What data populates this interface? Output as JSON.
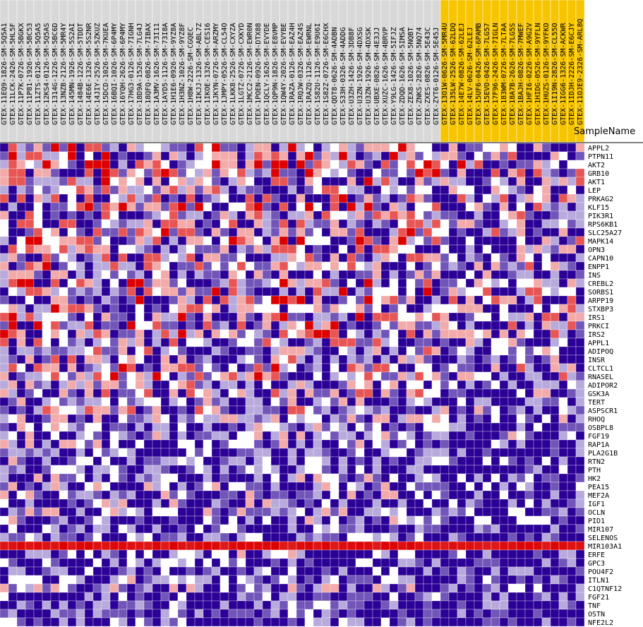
{
  "header": {
    "sample_name_label": "SampleName"
  },
  "chart_data": {
    "type": "heatmap",
    "highlight_color": "#f7c400",
    "columns": [
      "GTEX-11EQ9-1826-SM-5Q5A1",
      "GTEX-11LCK-2426-SM-5HL5F",
      "GTEX-11P7K-0726-SM-5BGKX",
      "GTEX-11P81-1926-SM-5BC53",
      "GTEX-11ZTS-0126-SM-5Q5A5",
      "GTEX-12KS4-0126-SM-5Q5AS",
      "GTEX-1314G-1226-SM-5BC6D",
      "GTEX-13NZB-2126-SM-5MR4Y",
      "GTEX-145MN-1926-SM-5S2AI",
      "GTEX-1484B-1226-SM-5TDDT",
      "GTEX-14E6E-1326-SM-5S2NR",
      "GTEX-14JIY-2526-SM-5ZKUZ",
      "GTEX-15DCD-1026-SM-7KUEA",
      "GTEX-16BQI-1026-SM-6P4MY",
      "GTEX-16YQH-2626-SM-6P4MY",
      "GTEX-17HG3-0126-SM-7IGNH",
      "GTEX-18D9A-1526-SM-7LG4J",
      "GTEX-18QFQ-0826-SM-7IBAX",
      "GTEX-1A3MV-1626-SM-73I11",
      "GTEX-1AYD5-1126-SM-73I8A",
      "GTEX-1H1E6-0926-SM-9YZ8A",
      "GTEX-1H3NZ-1026-SM-9YZ8F",
      "GTEX-1H8W-2226-SM-CGQEC",
      "GTEX-1IKJJ-1326-SM-ABL7Z",
      "GTEX-1IKOE-1326-SM-CES16",
      "GTEX-1JKYN-0726-SM-ARZMY",
      "GTEX-1JMPY-0526-SM-CL54O",
      "GTEX-1LKK8-2526-SM-CXYZA",
      "GTEX-1LGTZ-0726-SM-CXKYD",
      "GTEX-1MCC2-2126-SM-EWR0N",
      "GTEX-1POEN-0926-SM-DTX88",
      "GTEX-1QCLY-1626-SM-EVYDE",
      "GTEX-1QP9N-1826-SM-E8VMP",
      "GTEX-1QW4Y-2026-SM-EVYBE",
      "GTEX-1RAZA-0126-SM-EAZ4H",
      "GTEX-1RQJW-0326-SM-EAZ4S",
      "GTEX-1RAZQ-1126-SM-EWRNL",
      "GTEX-1S82U-1126-SM-E9U6I",
      "GTEX-1S82Z-0726-SM-E6CHX",
      "GTEX-QDT8-0626-SM-4ADBN",
      "GTEX-S33H-0326-SM-4ADDG",
      "GTEX-U3ZH-1426-SM-3DB8F",
      "GTEX-U3ZN-1926-SM-4DXSG",
      "GTEX-U3ZN-1926-SM-4DXSK",
      "GTEX-UBXE-0826-SM-4E3JJ",
      "GTEX-XUZC-1626-SM-4BRVP",
      "GTEX-Y9LG-1426-SM-5IFJZ",
      "GTEX-ZDQD-1626-SM-5IMSA",
      "GTEX-ZEX8-1026-SM-5NQBT",
      "GTEX-ZNKS-2826-SM-5NQ74",
      "GTEX-ZXES-0826-SM-5E43C",
      "GTEX-ZYT6-0126-SM-5E45J",
      "GTEX-13O1W-0626-SM-5MR4U",
      "GTEX-135LW-2526-SM-62LDQ",
      "GTEX-14E7W-0826-SM-62LEJ",
      "GTEX-14LV-0626-SM-62LEJ",
      "GTEX-15UF6-0426-SM-6PAMB",
      "GTEX-15EVO-0426-SM-7LG57",
      "GTEX-17F96-2426-SM-7IGLN",
      "GTEX-183WM-0726-SM-7LTAA",
      "GTEX-18A7B-2626-SM-7LG5S",
      "GTEX-1BAJH-0826-SM-7MWEF",
      "GTEX-1HFI6-0226-SM-A9G2V",
      "GTEX-1HIDG-0526-SM-9YFLN",
      "GTEX-1HUZS-0126-SM-9YFKO",
      "GTEX-1I19N-2826-SM-CL55O",
      "GTEX-1IGG6-1326-SM-ACKWR",
      "GTEX-1IDJH-2226-SM-E6CJY",
      "GTEX-11OJE9-2326-SM-ARL8Q"
    ],
    "highlighted_from_index": 52,
    "rows": [
      "APPL2",
      "PTPN11",
      "AKT2",
      "GRB10",
      "AKT1",
      "LEP",
      "PRKAG2",
      "KLF15",
      "PIK3R1",
      "RPS6KB1",
      "SLC25A27",
      "MAPK14",
      "OPN3",
      "CAPN10",
      "ENPP1",
      "INS",
      "CREBL2",
      "SORBS1",
      "ARPP19",
      "STXBP3",
      "IRS1",
      "PRKCI",
      "IRS2",
      "APPL1",
      "ADIPOQ",
      "INSR",
      "CLTCL1",
      "RNASEL",
      "ADIPOR2",
      "GSK3A",
      "TERT",
      "ASPSCR1",
      "RHOQ",
      "OSBPL8",
      "FGF19",
      "RAP1A",
      "PLA2G1B",
      "RTN2",
      "PTH",
      "HK2",
      "PEA15",
      "MEF2A",
      "IGF1",
      "OCLN",
      "PID1",
      "MIR107",
      "SELENOS",
      "MIR103A1",
      "ERFE",
      "GPC3",
      "POU4F2",
      "ITLN1",
      "C1QTNF12",
      "FGF21",
      "TNF",
      "OSTN",
      "NFE2L2"
    ],
    "row_profiles": [
      -0.1,
      -0.1,
      -0.05,
      -0.15,
      -0.2,
      -0.35,
      -0.2,
      -0.1,
      -0.25,
      -0.3,
      -0.2,
      -0.2,
      -0.3,
      -0.3,
      -0.25,
      -0.5,
      -0.15,
      -0.1,
      -0.15,
      -0.25,
      -0.2,
      -0.15,
      -0.15,
      -0.35,
      -0.3,
      -0.4,
      -0.2,
      -0.2,
      -0.45,
      -0.35,
      -0.6,
      -0.35,
      -0.5,
      -0.55,
      -0.5,
      -0.55,
      -0.8,
      -0.65,
      -0.75,
      -0.6,
      -0.55,
      -0.6,
      -0.6,
      -0.55,
      -0.6,
      -0.85,
      -0.75,
      1.0,
      -0.65,
      -0.75,
      -0.8,
      -0.7,
      -0.55,
      -0.8,
      -0.85,
      -0.9,
      -0.75
    ],
    "color_scale": {
      "low": "#2b0096",
      "mid": "#ffffff",
      "high": "#dc0000"
    }
  }
}
